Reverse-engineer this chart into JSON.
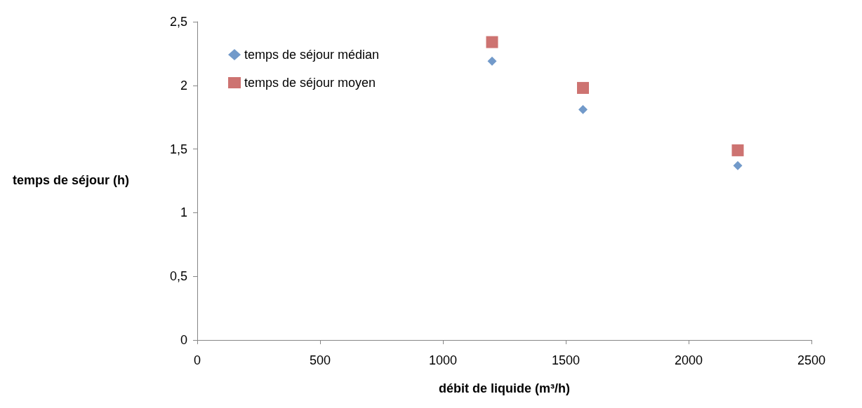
{
  "chart_data": {
    "type": "scatter",
    "xlabel": "débit de liquide (m³/h)",
    "ylabel": "temps de séjour (h)",
    "x": [
      1200,
      1570,
      2200
    ],
    "series": [
      {
        "name": "temps de séjour médian",
        "color": "#4f81bd",
        "marker": "diamond",
        "values": [
          2.19,
          1.81,
          1.37
        ]
      },
      {
        "name": "temps de séjour moyen",
        "color": "#c0504d",
        "marker": "square",
        "values": [
          2.34,
          1.98,
          1.49
        ]
      }
    ],
    "xlim": [
      0,
      2500
    ],
    "xticks": [
      0,
      500,
      1000,
      1500,
      2000,
      2500
    ],
    "ylim": [
      0,
      2.5
    ],
    "yticks": [
      0,
      {
        "value": 0.5,
        "label": "0,5"
      },
      1,
      {
        "value": 1.5,
        "label": "1,5"
      },
      2,
      {
        "value": 2.5,
        "label": "2,5"
      }
    ],
    "grid": false,
    "legend": "top left"
  }
}
